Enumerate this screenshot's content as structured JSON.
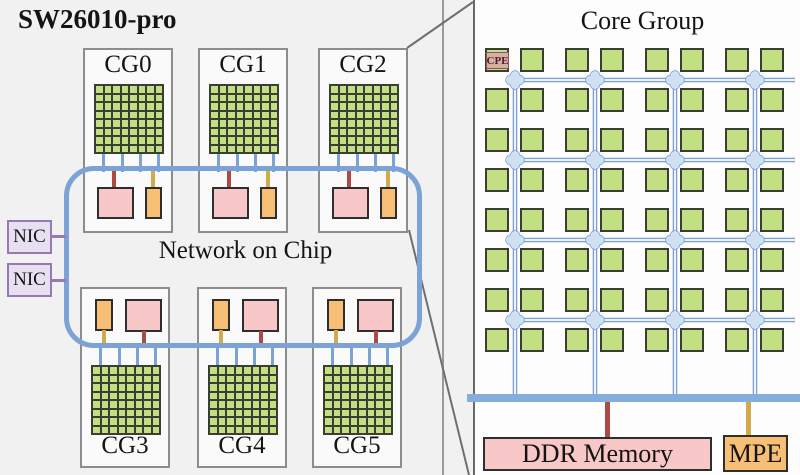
{
  "title": "SW26010-pro",
  "noc": {
    "label": "Network on Chip",
    "nics": [
      "NIC",
      "NIC"
    ]
  },
  "core_groups": {
    "top": [
      "CG0",
      "CG1",
      "CG2"
    ],
    "bottom": [
      "CG3",
      "CG4",
      "CG5"
    ],
    "cluster_grid": {
      "rows": 8,
      "cols": 8
    }
  },
  "panel": {
    "title": "Core Group",
    "cpe_tag": "CPE",
    "grid": {
      "rows": 8,
      "cols": 8
    },
    "router_grid": {
      "rows": 4,
      "cols": 4
    },
    "ddr": "DDR Memory",
    "mpe": "MPE"
  },
  "colors": {
    "bg": "#f1f1f2",
    "panel_bg": "#fdfdfd",
    "box_bg": "#fafafa",
    "box_border": "#8c8c8c",
    "green": "#c2e083",
    "green_border": "#3b3f33",
    "blue": "#7ca2d6",
    "pink": "#f8c7c7",
    "orange": "#f6bf75",
    "dark_red": "#ac4a45",
    "gold": "#d1aa4b",
    "purple": "#9878b6",
    "purple_fill": "#e7e0f1",
    "router_fill": "#d0dff2",
    "router_stroke": "#7099cb",
    "bar_blue": "#85aedd",
    "line_gray": "#6a6a6a",
    "line_gray2": "#999999",
    "text": "#141414",
    "cpe_tag_bg": "#d5b09e",
    "cpe_tag_text": "#541a35"
  }
}
